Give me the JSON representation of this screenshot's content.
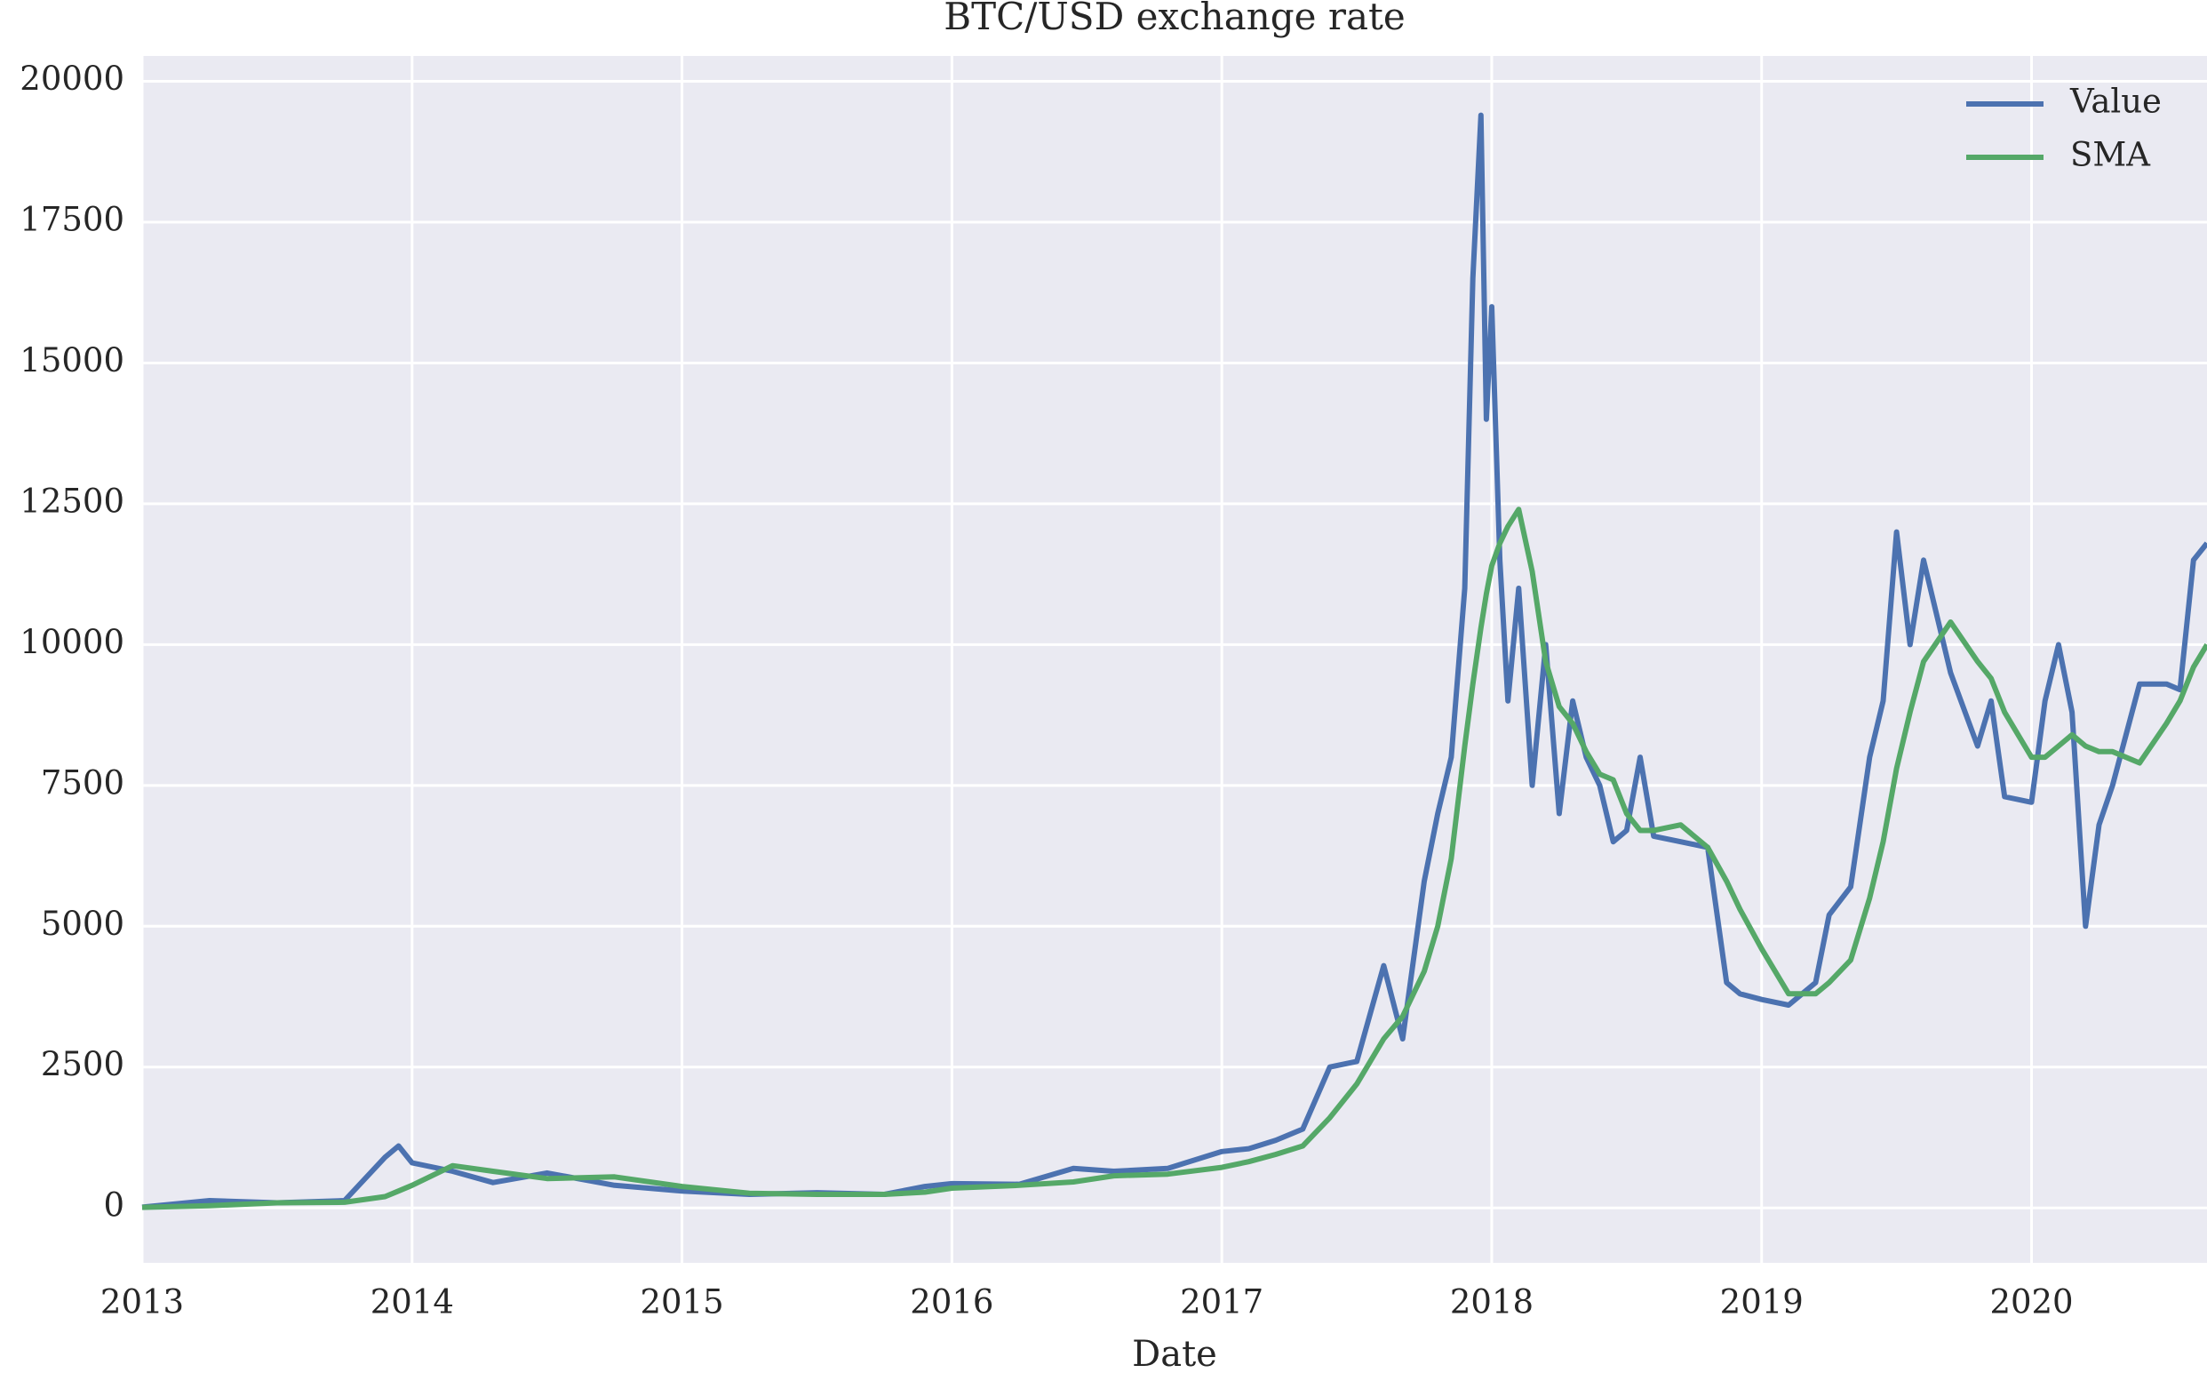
{
  "chart_data": {
    "type": "line",
    "title": "BTC/USD exchange rate",
    "xlabel": "Date",
    "x": [
      2013.0,
      2013.25,
      2013.5,
      2013.75,
      2013.9,
      2013.95,
      2014.0,
      2014.15,
      2014.3,
      2014.5,
      2014.75,
      2015.0,
      2015.25,
      2015.5,
      2015.75,
      2015.9,
      2016.0,
      2016.25,
      2016.45,
      2016.6,
      2016.8,
      2017.0,
      2017.1,
      2017.2,
      2017.3,
      2017.4,
      2017.5,
      2017.6,
      2017.67,
      2017.75,
      2017.8,
      2017.85,
      2017.9,
      2017.93,
      2017.96,
      2017.98,
      2018.0,
      2018.03,
      2018.06,
      2018.1,
      2018.15,
      2018.2,
      2018.25,
      2018.3,
      2018.35,
      2018.4,
      2018.45,
      2018.5,
      2018.55,
      2018.6,
      2018.7,
      2018.8,
      2018.87,
      2018.92,
      2019.0,
      2019.1,
      2019.2,
      2019.25,
      2019.33,
      2019.4,
      2019.45,
      2019.5,
      2019.55,
      2019.6,
      2019.7,
      2019.8,
      2019.85,
      2019.9,
      2020.0,
      2020.05,
      2020.1,
      2020.15,
      2020.2,
      2020.25,
      2020.3,
      2020.4,
      2020.5,
      2020.55,
      2020.6,
      2020.65
    ],
    "series": [
      {
        "name": "Value",
        "color": "#4c72b0",
        "values": [
          13,
          130,
          90,
          130,
          900,
          1100,
          800,
          650,
          450,
          620,
          400,
          300,
          240,
          270,
          240,
          380,
          430,
          420,
          700,
          650,
          700,
          1000,
          1050,
          1200,
          1400,
          2500,
          2600,
          4300,
          3000,
          5800,
          7000,
          8000,
          11000,
          16500,
          19400,
          14000,
          16000,
          11500,
          9000,
          11000,
          7500,
          10000,
          7000,
          9000,
          8000,
          7500,
          6500,
          6700,
          8000,
          6600,
          6500,
          6400,
          4000,
          3800,
          3700,
          3600,
          4000,
          5200,
          5700,
          8000,
          9000,
          12000,
          10000,
          11500,
          9500,
          8200,
          9000,
          7300,
          7200,
          9000,
          10000,
          8800,
          5000,
          6800,
          7500,
          9300,
          9300,
          9200,
          11500,
          11800
        ]
      },
      {
        "name": "SMA",
        "color": "#55a868",
        "values": [
          10,
          40,
          90,
          100,
          200,
          300,
          400,
          750,
          650,
          520,
          550,
          380,
          260,
          240,
          240,
          280,
          350,
          400,
          460,
          570,
          600,
          720,
          820,
          950,
          1100,
          1600,
          2200,
          3000,
          3400,
          4200,
          5000,
          6200,
          8200,
          9300,
          10300,
          10900,
          11400,
          11800,
          12100,
          12400,
          11300,
          9700,
          8900,
          8600,
          8100,
          7700,
          7600,
          7000,
          6700,
          6700,
          6800,
          6400,
          5800,
          5300,
          4600,
          3800,
          3800,
          4000,
          4400,
          5500,
          6500,
          7800,
          8800,
          9700,
          10400,
          9700,
          9400,
          8800,
          8000,
          8000,
          8200,
          8400,
          8200,
          8100,
          8100,
          7900,
          8600,
          9000,
          9600,
          10000
        ]
      }
    ],
    "xlim": [
      2013,
      2020.65
    ],
    "xticks": [
      2013,
      2014,
      2015,
      2016,
      2017,
      2018,
      2019,
      2020
    ],
    "ylim": [
      -975,
      20450
    ],
    "yticks": [
      0,
      2500,
      5000,
      7500,
      10000,
      12500,
      15000,
      17500,
      20000
    ],
    "grid": true,
    "legend": "upper right"
  }
}
